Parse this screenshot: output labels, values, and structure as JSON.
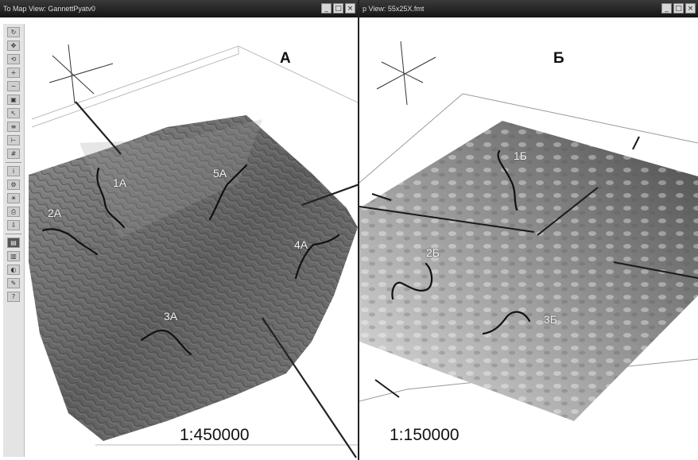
{
  "windows": {
    "a": {
      "title": "To Map View: GannettPyatv0",
      "panel_letter": "A",
      "scale": "1:450000",
      "routes": [
        "1A",
        "2A",
        "3A",
        "4A",
        "5A"
      ]
    },
    "b": {
      "title": "p View: 55x25X.fmt",
      "panel_letter": "Б",
      "scale": "1:150000",
      "routes": [
        "1Б",
        "2Б",
        "3Б"
      ]
    }
  },
  "window_controls": {
    "minimize": "_",
    "maximize": "□",
    "close": "×"
  },
  "toolbar_icons": [
    "refresh-icon",
    "pan-icon",
    "rotate-icon",
    "zoom-in-icon",
    "zoom-out-icon",
    "fit-icon",
    "select-icon",
    "layer-icon",
    "measure-icon",
    "grid-icon",
    "info-icon",
    "settings-icon",
    "lighting-icon",
    "print-icon",
    "export-icon",
    "view-top-icon",
    "view-side-icon",
    "color-icon",
    "tools-icon",
    "help-icon"
  ],
  "colors": {
    "titlebar": "#1e1e1e",
    "terrain_dark": "#555555",
    "terrain_light": "#dddddd"
  }
}
